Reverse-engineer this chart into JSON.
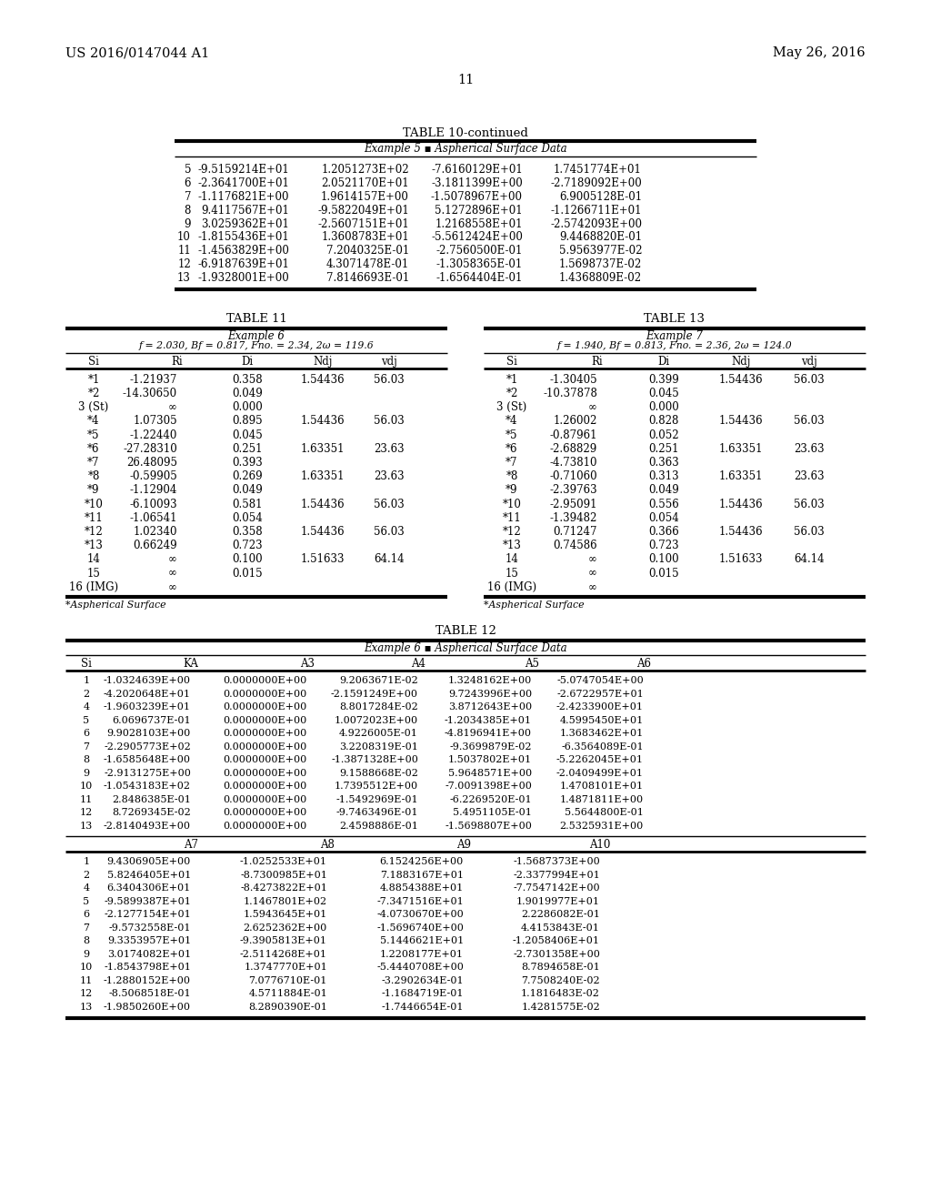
{
  "header_left": "US 2016/0147044 A1",
  "header_right": "May 26, 2016",
  "page_number": "11",
  "table10_title": "TABLE 10-continued",
  "table10_subtitle": "Example 5 ▪ Aspherical Surface Data",
  "table10_data": [
    [
      "5",
      "-9.5159214E+01",
      "1.2051273E+02",
      "-7.6160129E+01",
      "1.7451774E+01"
    ],
    [
      "6",
      "-2.3641700E+01",
      "2.0521170E+01",
      "-3.1811399E+00",
      "-2.7189092E+00"
    ],
    [
      "7",
      "-1.1176821E+00",
      "1.9614157E+00",
      "-1.5078967E+00",
      "6.9005128E-01"
    ],
    [
      "8",
      "9.4117567E+01",
      "-9.5822049E+01",
      "5.1272896E+01",
      "-1.1266711E+01"
    ],
    [
      "9",
      "3.0259362E+01",
      "-2.5607151E+01",
      "1.2168558E+01",
      "-2.5742093E+00"
    ],
    [
      "10",
      "-1.8155436E+01",
      "1.3608783E+01",
      "-5.5612424E+00",
      "9.4468820E-01"
    ],
    [
      "11",
      "-1.4563829E+00",
      "7.2040325E-01",
      "-2.7560500E-01",
      "5.9563977E-02"
    ],
    [
      "12",
      "-6.9187639E+01",
      "4.3071478E-01",
      "-1.3058365E-01",
      "1.5698737E-02"
    ],
    [
      "13",
      "-1.9328001E+00",
      "7.8146693E-01",
      "-1.6564404E-01",
      "1.4368809E-02"
    ]
  ],
  "table11_title": "TABLE 11",
  "table11_sub1": "Example 6",
  "table11_sub2": "f = 2.030, Bf = 0.817, Fno. = 2.34, 2ω = 119.6",
  "table11_headers": [
    "Si",
    "Ri",
    "Di",
    "Ndj",
    "vdj"
  ],
  "table11_data": [
    [
      "*1",
      "-1.21937",
      "0.358",
      "1.54436",
      "56.03"
    ],
    [
      "*2",
      "-14.30650",
      "0.049",
      "",
      ""
    ],
    [
      "3 (St)",
      "∞",
      "0.000",
      "",
      ""
    ],
    [
      "*4",
      "1.07305",
      "0.895",
      "1.54436",
      "56.03"
    ],
    [
      "*5",
      "-1.22440",
      "0.045",
      "",
      ""
    ],
    [
      "*6",
      "-27.28310",
      "0.251",
      "1.63351",
      "23.63"
    ],
    [
      "*7",
      "26.48095",
      "0.393",
      "",
      ""
    ],
    [
      "*8",
      "-0.59905",
      "0.269",
      "1.63351",
      "23.63"
    ],
    [
      "*9",
      "-1.12904",
      "0.049",
      "",
      ""
    ],
    [
      "*10",
      "-6.10093",
      "0.581",
      "1.54436",
      "56.03"
    ],
    [
      "*11",
      "-1.06541",
      "0.054",
      "",
      ""
    ],
    [
      "*12",
      "1.02340",
      "0.358",
      "1.54436",
      "56.03"
    ],
    [
      "*13",
      "0.66249",
      "0.723",
      "",
      ""
    ],
    [
      "14",
      "∞",
      "0.100",
      "1.51633",
      "64.14"
    ],
    [
      "15",
      "∞",
      "0.015",
      "",
      ""
    ],
    [
      "16 (IMG)",
      "∞",
      "",
      "",
      ""
    ]
  ],
  "table11_footnote": "*Aspherical Surface",
  "table13_title": "TABLE 13",
  "table13_sub1": "Example 7",
  "table13_sub2": "f = 1.940, Bf = 0.813, Fno. = 2.36, 2ω = 124.0",
  "table13_headers": [
    "Si",
    "Ri",
    "Di",
    "Ndj",
    "vdj"
  ],
  "table13_data": [
    [
      "*1",
      "-1.30405",
      "0.399",
      "1.54436",
      "56.03"
    ],
    [
      "*2",
      "-10.37878",
      "0.045",
      "",
      ""
    ],
    [
      "3 (St)",
      "∞",
      "0.000",
      "",
      ""
    ],
    [
      "*4",
      "1.26002",
      "0.828",
      "1.54436",
      "56.03"
    ],
    [
      "*5",
      "-0.87961",
      "0.052",
      "",
      ""
    ],
    [
      "*6",
      "-2.68829",
      "0.251",
      "1.63351",
      "23.63"
    ],
    [
      "*7",
      "-4.73810",
      "0.363",
      "",
      ""
    ],
    [
      "*8",
      "-0.71060",
      "0.313",
      "1.63351",
      "23.63"
    ],
    [
      "*9",
      "-2.39763",
      "0.049",
      "",
      ""
    ],
    [
      "*10",
      "-2.95091",
      "0.556",
      "1.54436",
      "56.03"
    ],
    [
      "*11",
      "-1.39482",
      "0.054",
      "",
      ""
    ],
    [
      "*12",
      "0.71247",
      "0.366",
      "1.54436",
      "56.03"
    ],
    [
      "*13",
      "0.74586",
      "0.723",
      "",
      ""
    ],
    [
      "14",
      "∞",
      "0.100",
      "1.51633",
      "64.14"
    ],
    [
      "15",
      "∞",
      "0.015",
      "",
      ""
    ],
    [
      "16 (IMG)",
      "∞",
      "",
      "",
      ""
    ]
  ],
  "table13_footnote": "*Aspherical Surface",
  "table12_title": "TABLE 12",
  "table12_subtitle": "Example 6 ▪ Aspherical Surface Data",
  "table12_headers1": [
    "Si",
    "KA",
    "A3",
    "A4",
    "A5",
    "A6"
  ],
  "table12_data1": [
    [
      "1",
      "-1.0324639E+00",
      "0.0000000E+00",
      "9.2063671E-02",
      "1.3248162E+00",
      "-5.0747054E+00"
    ],
    [
      "2",
      "-4.2020648E+01",
      "0.0000000E+00",
      "-2.1591249E+00",
      "9.7243996E+00",
      "-2.6722957E+01"
    ],
    [
      "4",
      "-1.9603239E+01",
      "0.0000000E+00",
      "8.8017284E-02",
      "3.8712643E+00",
      "-2.4233900E+01"
    ],
    [
      "5",
      "6.0696737E-01",
      "0.0000000E+00",
      "1.0072023E+00",
      "-1.2034385E+01",
      "4.5995450E+01"
    ],
    [
      "6",
      "9.9028103E+00",
      "0.0000000E+00",
      "4.9226005E-01",
      "-4.8196941E+00",
      "1.3683462E+01"
    ],
    [
      "7",
      "-2.2905773E+02",
      "0.0000000E+00",
      "3.2208319E-01",
      "-9.3699879E-02",
      "-6.3564089E-01"
    ],
    [
      "8",
      "-1.6585648E+00",
      "0.0000000E+00",
      "-1.3871328E+00",
      "1.5037802E+01",
      "-5.2262045E+01"
    ],
    [
      "9",
      "-2.9131275E+00",
      "0.0000000E+00",
      "9.1588668E-02",
      "5.9648571E+00",
      "-2.0409499E+01"
    ],
    [
      "10",
      "-1.0543183E+02",
      "0.0000000E+00",
      "1.7395512E+00",
      "-7.0091398E+00",
      "1.4708101E+01"
    ],
    [
      "11",
      "2.8486385E-01",
      "0.0000000E+00",
      "-1.5492969E-01",
      "-6.2269520E-01",
      "1.4871811E+00"
    ],
    [
      "12",
      "8.7269345E-02",
      "0.0000000E+00",
      "-9.7463496E-01",
      "5.4951105E-01",
      "5.5644800E-01"
    ],
    [
      "13",
      "-2.8140493E+00",
      "0.0000000E+00",
      "2.4598886E-01",
      "-1.5698807E+00",
      "2.5325931E+00"
    ]
  ],
  "table12_headers2": [
    "A7",
    "A8",
    "A9",
    "A10"
  ],
  "table12_data2": [
    [
      "1",
      "9.4306905E+00",
      "-1.0252533E+01",
      "6.1524256E+00",
      "-1.5687373E+00"
    ],
    [
      "2",
      "5.8246405E+01",
      "-8.7300985E+01",
      "7.1883167E+01",
      "-2.3377994E+01"
    ],
    [
      "4",
      "6.3404306E+01",
      "-8.4273822E+01",
      "4.8854388E+01",
      "-7.7547142E+00"
    ],
    [
      "5",
      "-9.5899387E+01",
      "1.1467801E+02",
      "-7.3471516E+01",
      "1.9019977E+01"
    ],
    [
      "6",
      "-2.1277154E+01",
      "1.5943645E+01",
      "-4.0730670E+00",
      "2.2286082E-01"
    ],
    [
      "7",
      "-9.5732558E-01",
      "2.6252362E+00",
      "-1.5696740E+00",
      "4.4153843E-01"
    ],
    [
      "8",
      "9.3353957E+01",
      "-9.3905813E+01",
      "5.1446621E+01",
      "-1.2058406E+01"
    ],
    [
      "9",
      "3.0174082E+01",
      "-2.5114268E+01",
      "1.2208177E+01",
      "-2.7301358E+00"
    ],
    [
      "10",
      "-1.8543798E+01",
      "1.3747770E+01",
      "-5.4440708E+00",
      "8.7894658E-01"
    ],
    [
      "11",
      "-1.2880152E+00",
      "7.0776710E-01",
      "-3.2902634E-01",
      "7.7508240E-02"
    ],
    [
      "12",
      "-8.5068518E-01",
      "4.5711884E-01",
      "-1.1684719E-01",
      "1.1816483E-02"
    ],
    [
      "13",
      "-1.9850260E+00",
      "8.2890390E-01",
      "-1.7446654E-01",
      "1.4281575E-02"
    ]
  ]
}
